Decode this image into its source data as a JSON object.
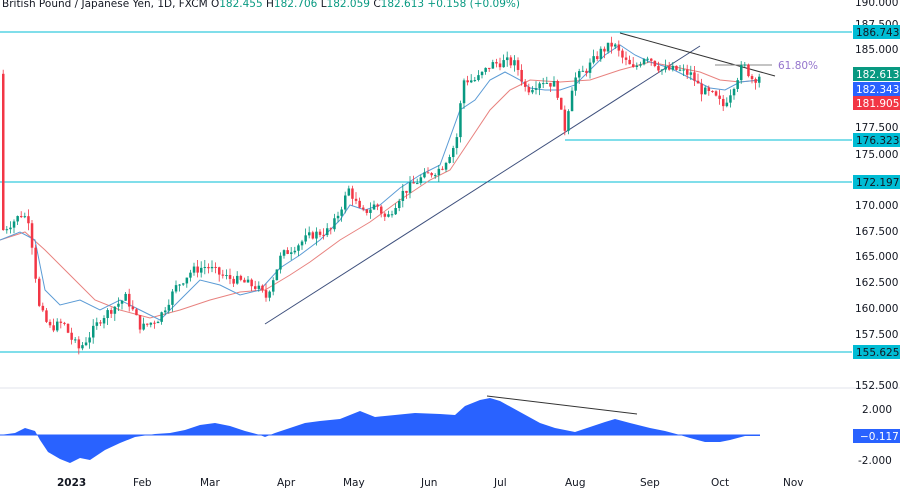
{
  "header": {
    "symbol": "British Pound / Japanese Yen, 1D, FXCM",
    "open_label": "O",
    "open": "182.455",
    "high_label": "H",
    "high": "182.706",
    "low_label": "L",
    "low": "182.059",
    "close_label": "C",
    "close": "182.613",
    "change": "+0.158 (+0.09%)"
  },
  "price_axis": {
    "ticks": [
      "190.000",
      "187.500",
      "185.000",
      "182.500",
      "180.000",
      "177.500",
      "175.000",
      "172.500",
      "170.000",
      "167.500",
      "165.000",
      "162.500",
      "160.000",
      "157.500",
      "155.000",
      "152.500"
    ],
    "tags": {
      "level_186": "186.743",
      "last": "182.613",
      "ma_fast": "182.343",
      "ma_slow": "181.905",
      "level_176": "176.323",
      "level_172": "172.197",
      "level_155": "155.625"
    }
  },
  "oscillator_axis": {
    "ticks": [
      "2.000",
      "-2.000"
    ],
    "value": "−0.117"
  },
  "time_axis": {
    "labels": [
      "2023",
      "Feb",
      "Mar",
      "Apr",
      "May",
      "Jun",
      "Jul",
      "Aug",
      "Sep",
      "Oct",
      "Nov"
    ]
  },
  "annotations": {
    "fib_label": "61.80%"
  },
  "colors": {
    "up": "#089981",
    "down": "#f23645",
    "level_line": "#00bcd4",
    "tag_cyan": "#00bcd4",
    "ma_fast": "#5b9bd5",
    "ma_slow": "#e8827f",
    "oscillator": "#2962ff",
    "trendline": "#3d4f7c",
    "fib": "#9575cd"
  },
  "chart_data": {
    "type": "candlestick",
    "title": "British Pound / Japanese Yen, 1D, FXCM",
    "ohlc_last": {
      "open": 182.455,
      "high": 182.706,
      "low": 182.059,
      "close": 182.613,
      "change": 0.158,
      "change_pct": 0.09
    },
    "x_labels": [
      "2023",
      "Feb",
      "Mar",
      "Apr",
      "May",
      "Jun",
      "Jul",
      "Aug",
      "Sep",
      "Oct",
      "Nov"
    ],
    "ylim": [
      152.5,
      190.0
    ],
    "horizontal_levels": [
      186.743,
      176.323,
      172.197,
      155.625
    ],
    "moving_averages": {
      "fast": 182.343,
      "slow": 181.905
    },
    "fib_level": "61.80%",
    "approx_closes_by_month_start": [
      {
        "month": "Jan",
        "value": 167.0
      },
      {
        "month": "Feb",
        "value": 158.5
      },
      {
        "month": "Mar",
        "value": 163.5
      },
      {
        "month": "Apr",
        "value": 163.0
      },
      {
        "month": "May",
        "value": 170.5
      },
      {
        "month": "Jun",
        "value": 173.5
      },
      {
        "month": "Jul",
        "value": 183.5
      },
      {
        "month": "Aug",
        "value": 181.5
      },
      {
        "month": "Sep",
        "value": 184.0
      },
      {
        "month": "Oct",
        "value": 181.5
      },
      {
        "month": "Mid-Oct",
        "value": 182.6
      }
    ],
    "oscillator": {
      "type": "area",
      "last_value": -0.117,
      "ylim": [
        -2.5,
        2.5
      ],
      "ticks": [
        2.0,
        -2.0
      ]
    }
  }
}
